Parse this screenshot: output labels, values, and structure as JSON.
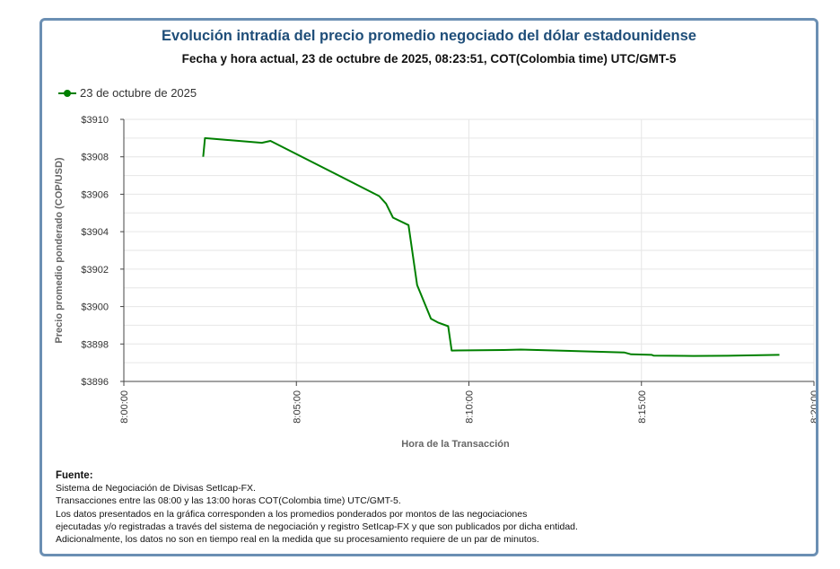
{
  "chart_data": {
    "type": "line",
    "title": "Evolución intradía del precio promedio negociado del dólar estadounidense",
    "subtitle": "Fecha y hora actual, 23 de octubre de 2025, 08:23:51, COT(Colombia time) UTC/GMT-5",
    "xlabel": "Hora de la Transacción",
    "ylabel": "Precio promedio ponderado (COP/USD)",
    "x_unit": "minutes since 8:00:00",
    "xlim": [
      0,
      20
    ],
    "ylim": [
      3896,
      3910
    ],
    "x_ticks": [
      0,
      5,
      10,
      15,
      20
    ],
    "x_tick_labels": [
      "8:00:00",
      "8:05:00",
      "8:10:00",
      "8:15:00",
      "8:20:00"
    ],
    "y_ticks": [
      3896,
      3898,
      3900,
      3902,
      3904,
      3906,
      3908,
      3910
    ],
    "y_tick_labels": [
      "$3896",
      "$3898",
      "$3900",
      "$3902",
      "$3904",
      "$3906",
      "$3908",
      "$3910"
    ],
    "legend_position": "top-left",
    "series": [
      {
        "name": "23 de octubre de 2025",
        "color": "#008000",
        "points": [
          [
            2.3,
            3908.0
          ],
          [
            2.35,
            3909.0
          ],
          [
            4.0,
            3908.75
          ],
          [
            4.25,
            3908.85
          ],
          [
            7.4,
            3905.9
          ],
          [
            7.6,
            3905.5
          ],
          [
            7.8,
            3904.75
          ],
          [
            8.25,
            3904.35
          ],
          [
            8.5,
            3901.15
          ],
          [
            8.9,
            3899.35
          ],
          [
            9.1,
            3899.15
          ],
          [
            9.4,
            3898.95
          ],
          [
            9.5,
            3897.65
          ],
          [
            11.0,
            3897.68
          ],
          [
            11.5,
            3897.7
          ],
          [
            14.5,
            3897.55
          ],
          [
            14.7,
            3897.45
          ],
          [
            15.3,
            3897.42
          ],
          [
            15.35,
            3897.38
          ],
          [
            16.5,
            3897.36
          ],
          [
            17.5,
            3897.37
          ],
          [
            19.0,
            3897.42
          ]
        ]
      }
    ]
  },
  "fuente": {
    "heading": "Fuente:",
    "lines": [
      "Sistema de Negociación de Divisas SetIcap-FX.",
      "Transacciones entre las 08:00 y las 13:00 horas COT(Colombia time) UTC/GMT-5.",
      "Los datos presentados en la gráfica corresponden a los promedios ponderados por montos de las negociaciones",
      "ejecutadas y/o registradas a través del sistema de negociación y registro SetIcap-FX y que son publicados por dicha entidad.",
      "Adicionalmente, los datos no son en tiempo real en la medida que su procesamiento requiere de un par de minutos."
    ]
  }
}
